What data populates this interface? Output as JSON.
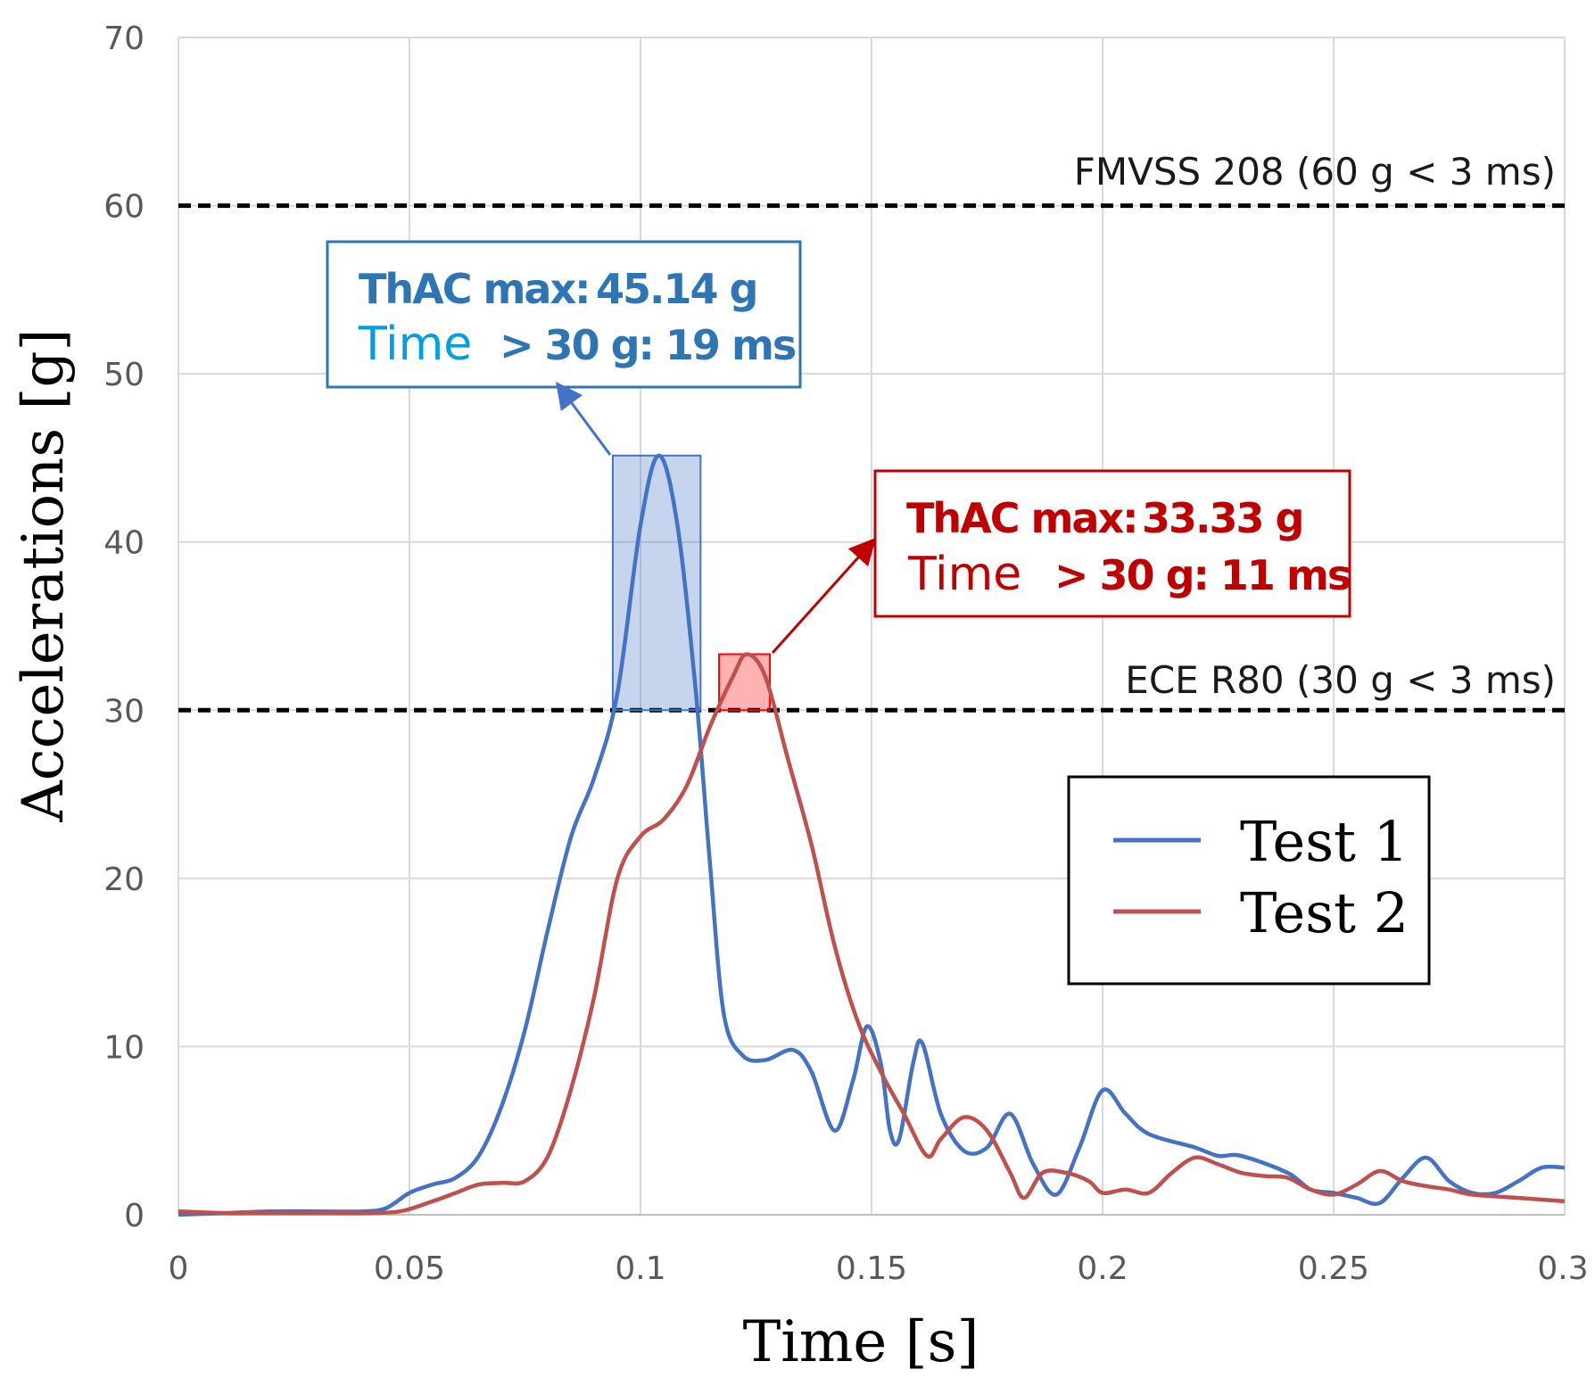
{
  "chart_data": {
    "type": "line",
    "xlabel": "Time [s]",
    "ylabel": "Accelerations [g]",
    "xlim": [
      0,
      0.3
    ],
    "ylim": [
      0,
      70
    ],
    "x_ticks": [
      "0",
      "0.05",
      "0.1",
      "0.15",
      "0.2",
      "0.25",
      "0.3"
    ],
    "y_ticks": [
      "0",
      "10",
      "20",
      "30",
      "40",
      "50",
      "60",
      "70"
    ],
    "grid": true,
    "legend_position": "bottom-right",
    "series": [
      {
        "name": "Test 1",
        "color": "#4472C4",
        "points": [
          [
            0,
            0
          ],
          [
            0.01,
            0.1
          ],
          [
            0.02,
            0.2
          ],
          [
            0.03,
            0.2
          ],
          [
            0.04,
            0.2
          ],
          [
            0.045,
            0.4
          ],
          [
            0.05,
            1.3
          ],
          [
            0.055,
            1.8
          ],
          [
            0.06,
            2.2
          ],
          [
            0.065,
            3.5
          ],
          [
            0.07,
            6.5
          ],
          [
            0.075,
            11
          ],
          [
            0.08,
            17
          ],
          [
            0.085,
            22.5
          ],
          [
            0.09,
            26
          ],
          [
            0.095,
            31
          ],
          [
            0.1,
            41
          ],
          [
            0.104,
            45.14
          ],
          [
            0.108,
            41
          ],
          [
            0.112,
            31
          ],
          [
            0.115,
            21
          ],
          [
            0.118,
            12
          ],
          [
            0.122,
            9.5
          ],
          [
            0.127,
            9.2
          ],
          [
            0.133,
            9.8
          ],
          [
            0.137,
            8.5
          ],
          [
            0.142,
            5
          ],
          [
            0.146,
            8
          ],
          [
            0.149,
            11.2
          ],
          [
            0.152,
            9
          ],
          [
            0.154,
            5
          ],
          [
            0.156,
            4.5
          ],
          [
            0.159,
            9
          ],
          [
            0.161,
            10.2
          ],
          [
            0.165,
            6
          ],
          [
            0.17,
            3.8
          ],
          [
            0.175,
            4
          ],
          [
            0.18,
            6
          ],
          [
            0.185,
            3
          ],
          [
            0.19,
            1.2
          ],
          [
            0.195,
            4
          ],
          [
            0.2,
            7.4
          ],
          [
            0.205,
            6
          ],
          [
            0.21,
            4.8
          ],
          [
            0.22,
            4
          ],
          [
            0.225,
            3.5
          ],
          [
            0.23,
            3.5
          ],
          [
            0.24,
            2.5
          ],
          [
            0.245,
            1.5
          ],
          [
            0.25,
            1.3
          ],
          [
            0.255,
            1
          ],
          [
            0.26,
            0.7
          ],
          [
            0.265,
            2.2
          ],
          [
            0.27,
            3.4
          ],
          [
            0.275,
            2
          ],
          [
            0.28,
            1.3
          ],
          [
            0.285,
            1.3
          ],
          [
            0.29,
            2
          ],
          [
            0.295,
            2.8
          ],
          [
            0.3,
            2.8
          ]
        ]
      },
      {
        "name": "Test 2",
        "color": "#C0504D",
        "points": [
          [
            0,
            0.2
          ],
          [
            0.01,
            0.1
          ],
          [
            0.02,
            0.1
          ],
          [
            0.03,
            0.1
          ],
          [
            0.04,
            0.1
          ],
          [
            0.048,
            0.2
          ],
          [
            0.055,
            0.8
          ],
          [
            0.06,
            1.3
          ],
          [
            0.065,
            1.8
          ],
          [
            0.07,
            1.9
          ],
          [
            0.075,
            2
          ],
          [
            0.08,
            3.5
          ],
          [
            0.085,
            7.5
          ],
          [
            0.09,
            13
          ],
          [
            0.095,
            20
          ],
          [
            0.1,
            22.5
          ],
          [
            0.105,
            23.5
          ],
          [
            0.11,
            25.5
          ],
          [
            0.115,
            29
          ],
          [
            0.12,
            32
          ],
          [
            0.123,
            33.33
          ],
          [
            0.127,
            32
          ],
          [
            0.132,
            27
          ],
          [
            0.137,
            22
          ],
          [
            0.142,
            16
          ],
          [
            0.147,
            11.5
          ],
          [
            0.152,
            8.5
          ],
          [
            0.157,
            6
          ],
          [
            0.162,
            3.5
          ],
          [
            0.165,
            4.5
          ],
          [
            0.17,
            5.8
          ],
          [
            0.175,
            5
          ],
          [
            0.18,
            2.5
          ],
          [
            0.183,
            1
          ],
          [
            0.187,
            2.5
          ],
          [
            0.192,
            2.5
          ],
          [
            0.197,
            2
          ],
          [
            0.2,
            1.3
          ],
          [
            0.205,
            1.5
          ],
          [
            0.21,
            1.3
          ],
          [
            0.215,
            2.5
          ],
          [
            0.22,
            3.4
          ],
          [
            0.225,
            3
          ],
          [
            0.23,
            2.5
          ],
          [
            0.235,
            2.3
          ],
          [
            0.24,
            2.2
          ],
          [
            0.245,
            1.5
          ],
          [
            0.25,
            1.2
          ],
          [
            0.255,
            1.8
          ],
          [
            0.26,
            2.6
          ],
          [
            0.265,
            2
          ],
          [
            0.27,
            1.7
          ],
          [
            0.275,
            1.5
          ],
          [
            0.28,
            1.2
          ],
          [
            0.29,
            1
          ],
          [
            0.3,
            0.8
          ]
        ]
      }
    ],
    "reference_lines": [
      {
        "y": 60,
        "label": "FMVSS 208 (60 g < 3 ms)"
      },
      {
        "y": 30,
        "label": "ECE R80 (30 g <  3 ms)"
      }
    ],
    "highlight_regions": [
      {
        "series": "Test 1",
        "x0": 0.094,
        "x1": 0.113,
        "y0": 30,
        "y1": 45.14,
        "color": "#4472C4"
      },
      {
        "series": "Test 2",
        "x0": 0.117,
        "x1": 0.128,
        "y0": 30,
        "y1": 33.33,
        "color": "#FF0000"
      }
    ],
    "annotations": [
      {
        "series": "Test 1",
        "line1_label": "ThAC max:",
        "line1_value": "45.14 g",
        "line2_label": "Time",
        "line2_value": "> 30 g: 19 ms",
        "border_color": "#2E75B6",
        "label_color": "#2E75B6",
        "line2_label_color": "#00A0E0"
      },
      {
        "series": "Test 2",
        "line1_label": "ThAC max:",
        "line1_value": "33.33 g",
        "line2_label": "Time",
        "line2_value": "> 30 g: 11 ms",
        "border_color": "#C00000",
        "label_color": "#C00000",
        "line2_label_color": "#C00000"
      }
    ]
  }
}
